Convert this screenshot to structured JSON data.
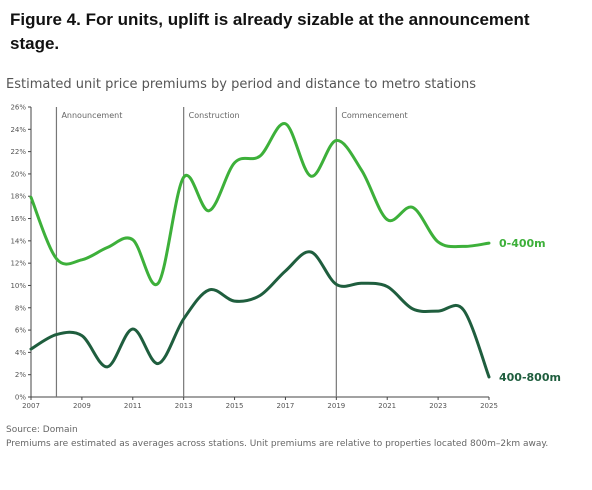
{
  "figure": {
    "title": "Figure 4. For units, uplift is already sizable at the announcement stage.",
    "source": "Source: Domain",
    "note": "Premiums are estimated as averages across stations. Unit premiums are relative to properties located 800m–2km away."
  },
  "chart_data": {
    "type": "line",
    "title": "Estimated unit price premiums by period and distance to metro stations",
    "xlabel": "",
    "ylabel": "",
    "xlim": [
      2007,
      2025
    ],
    "ylim": [
      0,
      26
    ],
    "x_ticks": [
      "2007",
      "2009",
      "2011",
      "2013",
      "2015",
      "2017",
      "2019",
      "2021",
      "2023",
      "2025"
    ],
    "y_ticks": [
      "0%",
      "2%",
      "4%",
      "6%",
      "8%",
      "10%",
      "12%",
      "14%",
      "16%",
      "18%",
      "20%",
      "22%",
      "24%",
      "26%"
    ],
    "grid": false,
    "phases": [
      {
        "label": "Announcement",
        "x": 2008
      },
      {
        "label": "Construction",
        "x": 2013
      },
      {
        "label": "Commencement",
        "x": 2019
      }
    ],
    "series": [
      {
        "name": "0-400m",
        "color": "#3db03a",
        "x": [
          2007,
          2008,
          2009,
          2010,
          2011,
          2012,
          2013,
          2014,
          2015,
          2016,
          2017,
          2018,
          2019,
          2020,
          2021,
          2022,
          2023,
          2024,
          2025
        ],
        "values": [
          17.9,
          12.4,
          12.3,
          13.4,
          14.1,
          10.2,
          19.7,
          16.7,
          21.0,
          21.6,
          24.5,
          19.8,
          23.0,
          20.3,
          15.9,
          17.0,
          13.9,
          13.5,
          13.8
        ]
      },
      {
        "name": "400-800m",
        "color": "#1f5e3e",
        "x": [
          2007,
          2008,
          2009,
          2010,
          2011,
          2012,
          2013,
          2014,
          2015,
          2016,
          2017,
          2018,
          2019,
          2020,
          2021,
          2022,
          2023,
          2024,
          2025
        ],
        "values": [
          4.3,
          5.6,
          5.5,
          2.7,
          6.1,
          3.0,
          7.0,
          9.6,
          8.6,
          9.1,
          11.3,
          13.0,
          10.1,
          10.2,
          9.9,
          7.9,
          7.7,
          7.8,
          1.8
        ]
      }
    ]
  }
}
